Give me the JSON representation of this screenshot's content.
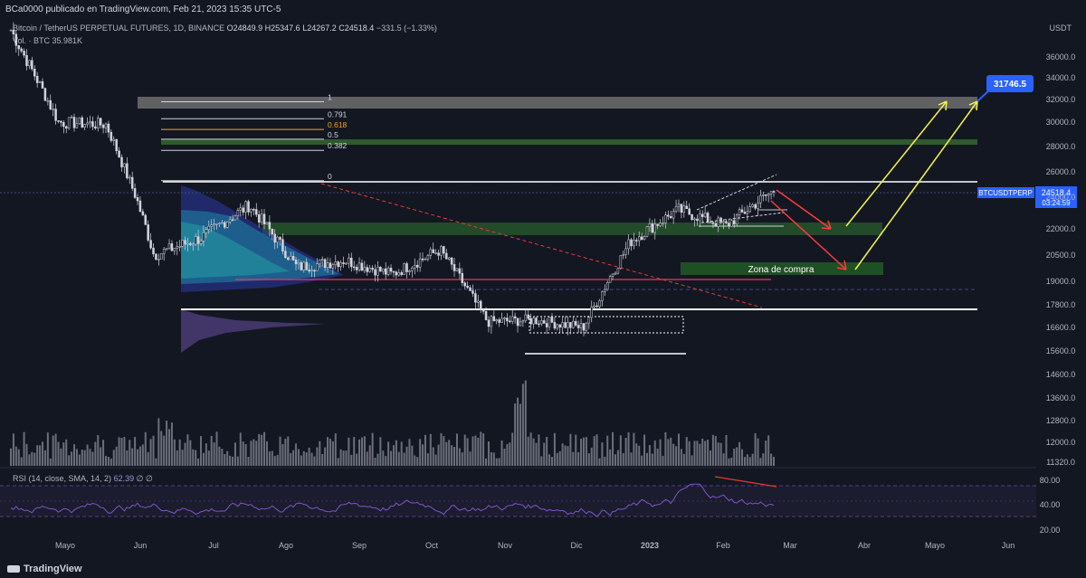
{
  "header": {
    "publisher": "BCa0000 publicado en TradingView.com, Feb 21, 2023 15:35 UTC-5"
  },
  "legend": {
    "symbol": "Bitcoin / TetherUS PERPETUAL FUTURES, 1D, BINANCE",
    "open": "O24849.9",
    "high": "H25347.6",
    "low": "L24267.2",
    "close": "C24518.4",
    "change": "−331.5 (−1.33%)",
    "volume": "Vol. · BTC  35.981K"
  },
  "rsi_legend": {
    "label": "RSI (14, close, SMA, 14, 2)",
    "value": "62.39",
    "extra": "∅ ∅"
  },
  "price_axis": {
    "unit": "USDT",
    "ticks": [
      "36000.0",
      "34000.0",
      "32000.0",
      "30000.0",
      "28000.0",
      "26000.0",
      "24000.0",
      "22000.0",
      "20500.0",
      "19000.0",
      "17800.0",
      "16600.0",
      "15600.0",
      "14600.0",
      "13600.0",
      "12800.0",
      "12000.0",
      "11320.0"
    ],
    "rsi_ticks": [
      "80.00",
      "40.00",
      "20.00"
    ]
  },
  "time_axis": {
    "ticks": [
      "Mayo",
      "Jun",
      "Jul",
      "Ago",
      "Sep",
      "Oct",
      "Nov",
      "Dic",
      "2023",
      "Feb",
      "Mar",
      "Abr",
      "Mayo",
      "Jun"
    ]
  },
  "labels": {
    "target_price": "31746.5",
    "symbol_tag": "BTCUSDTPERP",
    "last_price": "24518.4",
    "countdown": "03:24:59",
    "buy_zone": "Zona de compra"
  },
  "fib_levels": [
    {
      "label": "1",
      "price": 31800
    },
    {
      "label": "0.791",
      "price": 30300
    },
    {
      "label": "0.618",
      "price": 29400
    },
    {
      "label": "0.5",
      "price": 28600
    },
    {
      "label": "0.382",
      "price": 27700
    },
    {
      "label": "0",
      "price": 25300
    }
  ],
  "colors": {
    "background": "#131722",
    "candle": "#d1d4dc",
    "fib_618": "#f5a623",
    "green_zone": "#2e5a2e",
    "target_blue": "#2962ff",
    "rsi": "#7e57c2",
    "trend_red": "#e53935",
    "arrow_red": "#ff3b3b",
    "arrow_yellow": "#f5f54a"
  },
  "chart_data": {
    "type": "candlestick",
    "symbol": "Bitcoin / TetherUS PERPETUAL FUTURES",
    "interval": "1D",
    "exchange": "BINANCE",
    "ohlc_last": {
      "open": 24849.9,
      "high": 25347.6,
      "low": 24267.2,
      "close": 24518.4
    },
    "x": [
      "Mayo",
      "Jun",
      "Jul",
      "Ago",
      "Sep",
      "Oct",
      "Nov",
      "Dic",
      "2023",
      "Feb",
      "Mar"
    ],
    "close_path": [
      38500,
      30000,
      29800,
      20500,
      21500,
      23500,
      19800,
      20200,
      19400,
      20800,
      16900,
      17000,
      16600,
      21300,
      23200,
      22200,
      24500
    ],
    "ylim": [
      11320,
      37000
    ],
    "zones": [
      {
        "name": "resistance",
        "from": 31200,
        "to": 32300
      },
      {
        "name": "green-upper",
        "from": 28300,
        "to": 28700
      },
      {
        "name": "green-mid",
        "from": 21900,
        "to": 22700
      },
      {
        "name": "Zona de compra",
        "from": 19800,
        "to": 20300
      }
    ],
    "horizontal_lines": [
      25300,
      19100,
      17500,
      15500
    ],
    "target": 31746.5,
    "rsi_range": [
      20,
      80
    ]
  }
}
